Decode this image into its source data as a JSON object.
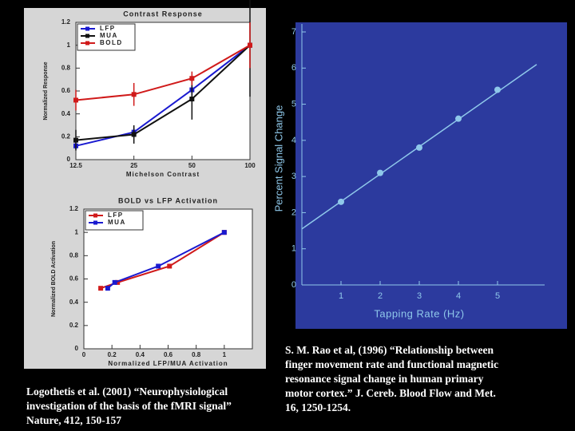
{
  "chart_data": [
    {
      "type": "line",
      "title": "Contrast Response",
      "x_label": "Michelson Contrast",
      "y_label": "Normalized Response",
      "x": [
        12.5,
        25,
        50,
        100
      ],
      "xscale": "log",
      "xlim": [
        12.5,
        100
      ],
      "xticks": [
        12.5,
        25,
        50,
        100
      ],
      "ylim": [
        0,
        1.2
      ],
      "yticks": [
        0,
        0.2,
        0.4,
        0.6,
        0.8,
        1,
        1.2
      ],
      "legend": "top-left",
      "series": [
        {
          "name": "LFP",
          "color": "#1a1ad0",
          "values": [
            0.12,
            0.24,
            0.61,
            1.0
          ],
          "errors": [
            0.03,
            0.04,
            0.05,
            0.0
          ]
        },
        {
          "name": "MUA",
          "color": "#111111",
          "values": [
            0.17,
            0.22,
            0.53,
            1.0
          ],
          "errors": [
            0.09,
            0.08,
            0.18,
            0.45
          ]
        },
        {
          "name": "BOLD",
          "color": "#d01a1a",
          "values": [
            0.52,
            0.57,
            0.71,
            1.0
          ],
          "errors": [
            0.09,
            0.1,
            0.06,
            0.2
          ]
        }
      ]
    },
    {
      "type": "line",
      "title": "BOLD vs LFP Activation",
      "x_label": "Normalized LFP/MUA Activation",
      "y_label": "Normalized BOLD Activation",
      "xlim": [
        0,
        1.2
      ],
      "xticks": [
        0,
        0.2,
        0.4,
        0.6,
        0.8,
        1
      ],
      "ylim": [
        0,
        1.2
      ],
      "yticks": [
        0,
        0.2,
        0.4,
        0.6,
        0.8,
        1,
        1.2
      ],
      "legend": "top-left",
      "series": [
        {
          "name": "LFP",
          "color": "#d01a1a",
          "x": [
            0.12,
            0.24,
            0.61,
            1.0
          ],
          "values": [
            0.52,
            0.57,
            0.71,
            1.0
          ]
        },
        {
          "name": "MUA",
          "color": "#1a1ad0",
          "x": [
            0.17,
            0.22,
            0.53,
            1.0
          ],
          "values": [
            0.52,
            0.57,
            0.71,
            1.0
          ]
        }
      ]
    },
    {
      "type": "scatter",
      "x_label": "Tapping Rate (Hz)",
      "y_label": "Percent Signal Change",
      "xlim": [
        0,
        6
      ],
      "xticks": [
        1,
        2,
        3,
        4,
        5
      ],
      "ylim": [
        0,
        7
      ],
      "yticks": [
        0,
        1,
        2,
        3,
        4,
        5,
        6,
        7
      ],
      "x": [
        1,
        2,
        3,
        4,
        5
      ],
      "values": [
        2.3,
        3.1,
        3.8,
        4.6,
        5.4
      ],
      "color": "#8fc8ea",
      "fit": {
        "x": [
          0,
          6
        ],
        "values": [
          1.55,
          6.1
        ]
      }
    }
  ],
  "captions": {
    "left": [
      "Logothetis et al. (2001) “Neurophysiological",
      "investigation of the basis of the fMRI signal”",
      "Nature, 412, 150-157"
    ],
    "right": [
      "S. M. Rao et al, (1996) “Relationship between",
      "finger movement rate and functional magnetic",
      "resonance signal change in human primary",
      "motor cortex.” J. Cereb. Blood Flow and Met.",
      "16, 1250-1254."
    ]
  }
}
